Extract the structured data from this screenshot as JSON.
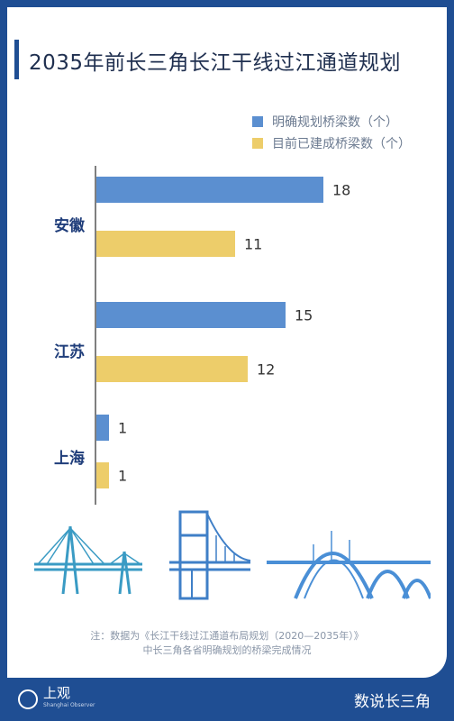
{
  "title": "2035年前长三角长江干线过江通道规划",
  "colors": {
    "planned": "#5b8fd0",
    "built": "#edcd6a",
    "brand": "#1f4e93",
    "label": "#1f3d7a"
  },
  "chart_data": {
    "type": "bar",
    "orientation": "horizontal",
    "categories": [
      "安徽",
      "江苏",
      "上海"
    ],
    "series": [
      {
        "name": "明确规划桥梁数（个）",
        "values": [
          18,
          15,
          1
        ]
      },
      {
        "name": "目前已建成桥梁数（个）",
        "values": [
          11,
          12,
          1
        ]
      }
    ],
    "xlim": [
      0,
      18
    ],
    "legend_position": "top-right",
    "grid": false
  },
  "note": {
    "line1": "注：数据为《长江干线过江通道布局规划（2020—2035年）》",
    "line2": "中长三角各省明确规划的桥梁完成情况"
  },
  "footer": {
    "logo_text": "上观",
    "logo_sub": "Shanghai Observer",
    "brand": "数说长三角"
  }
}
